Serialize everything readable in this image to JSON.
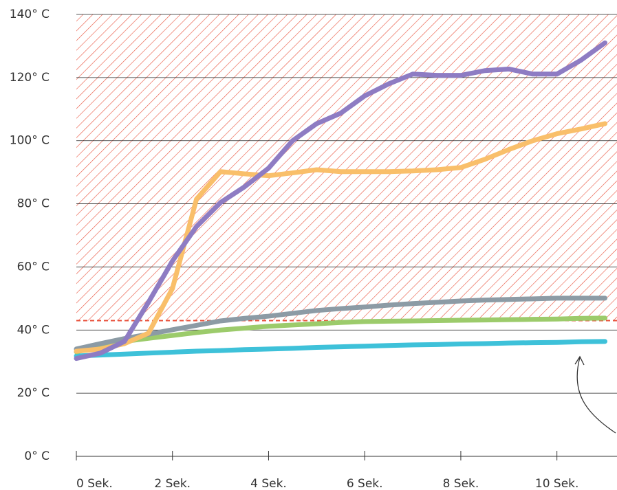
{
  "chart_data": {
    "type": "line",
    "x": [
      0,
      0.5,
      1,
      1.5,
      2,
      2.5,
      3,
      3.5,
      4,
      4.5,
      5,
      5.5,
      6,
      6.5,
      7,
      7.5,
      8,
      8.5,
      9,
      9.5,
      10,
      10.5,
      11
    ],
    "series": [
      {
        "color": "#3ec1d9",
        "values": [
          31.8,
          32.1,
          32.4,
          32.7,
          33,
          33.3,
          33.5,
          33.8,
          34,
          34.2,
          34.5,
          34.7,
          34.9,
          35.1,
          35.3,
          35.4,
          35.6,
          35.7,
          35.9,
          36,
          36.1,
          36.3,
          36.4
        ]
      },
      {
        "color": "#9ccb6b",
        "values": [
          33.1,
          34.8,
          36.4,
          37.4,
          38.3,
          39.2,
          40,
          40.6,
          41.2,
          41.6,
          42,
          42.4,
          42.7,
          42.8,
          42.9,
          43,
          43.1,
          43.2,
          43.3,
          43.4,
          43.5,
          43.7,
          43.8
        ]
      },
      {
        "color": "#8c9ba5",
        "values": [
          34,
          35.7,
          37.3,
          38.7,
          40.1,
          41.5,
          42.9,
          43.7,
          44.4,
          45.3,
          46.2,
          46.8,
          47.3,
          47.9,
          48.4,
          48.8,
          49.2,
          49.5,
          49.7,
          49.9,
          50.1,
          50.1,
          50.1
        ]
      },
      {
        "color": "#f9bf6a",
        "values": [
          33.3,
          34,
          35.7,
          39,
          53.2,
          81.5,
          90.2,
          89.5,
          88.9,
          89.8,
          90.8,
          90.2,
          90.2,
          90.2,
          90.4,
          90.8,
          91.5,
          94.1,
          97.2,
          100,
          102.2,
          103.7,
          105.4
        ]
      },
      {
        "color": "#8e7cc3",
        "values": [
          31,
          32.7,
          36.4,
          48.8,
          61.9,
          72.8,
          80.4,
          85.4,
          91.3,
          100,
          105.4,
          108.7,
          114.2,
          118,
          121.1,
          120.7,
          120.7,
          122.2,
          122.7,
          121.1,
          121.1,
          125.5,
          131
        ]
      }
    ],
    "threshold": 43,
    "threshold_color": "#e8503a",
    "xlim": [
      0,
      11.25
    ],
    "xticks": [
      {
        "value": 0,
        "label": "0 Sek."
      },
      {
        "value": 2,
        "label": "2 Sek."
      },
      {
        "value": 4,
        "label": "4 Sek."
      },
      {
        "value": 6,
        "label": "6 Sek."
      },
      {
        "value": 8,
        "label": "8 Sek."
      },
      {
        "value": 10,
        "label": "10 Sek."
      }
    ],
    "ylim": [
      0,
      140
    ],
    "yticks": [
      {
        "value": 0,
        "label": "0° C"
      },
      {
        "value": 20,
        "label": "20° C"
      },
      {
        "value": 40,
        "label": "40° C"
      },
      {
        "value": 60,
        "label": "60° C"
      },
      {
        "value": 80,
        "label": "80° C"
      },
      {
        "value": 100,
        "label": "100° C"
      },
      {
        "value": 120,
        "label": "120° C"
      },
      {
        "value": 140,
        "label": "140° C"
      }
    ],
    "grid": true
  }
}
